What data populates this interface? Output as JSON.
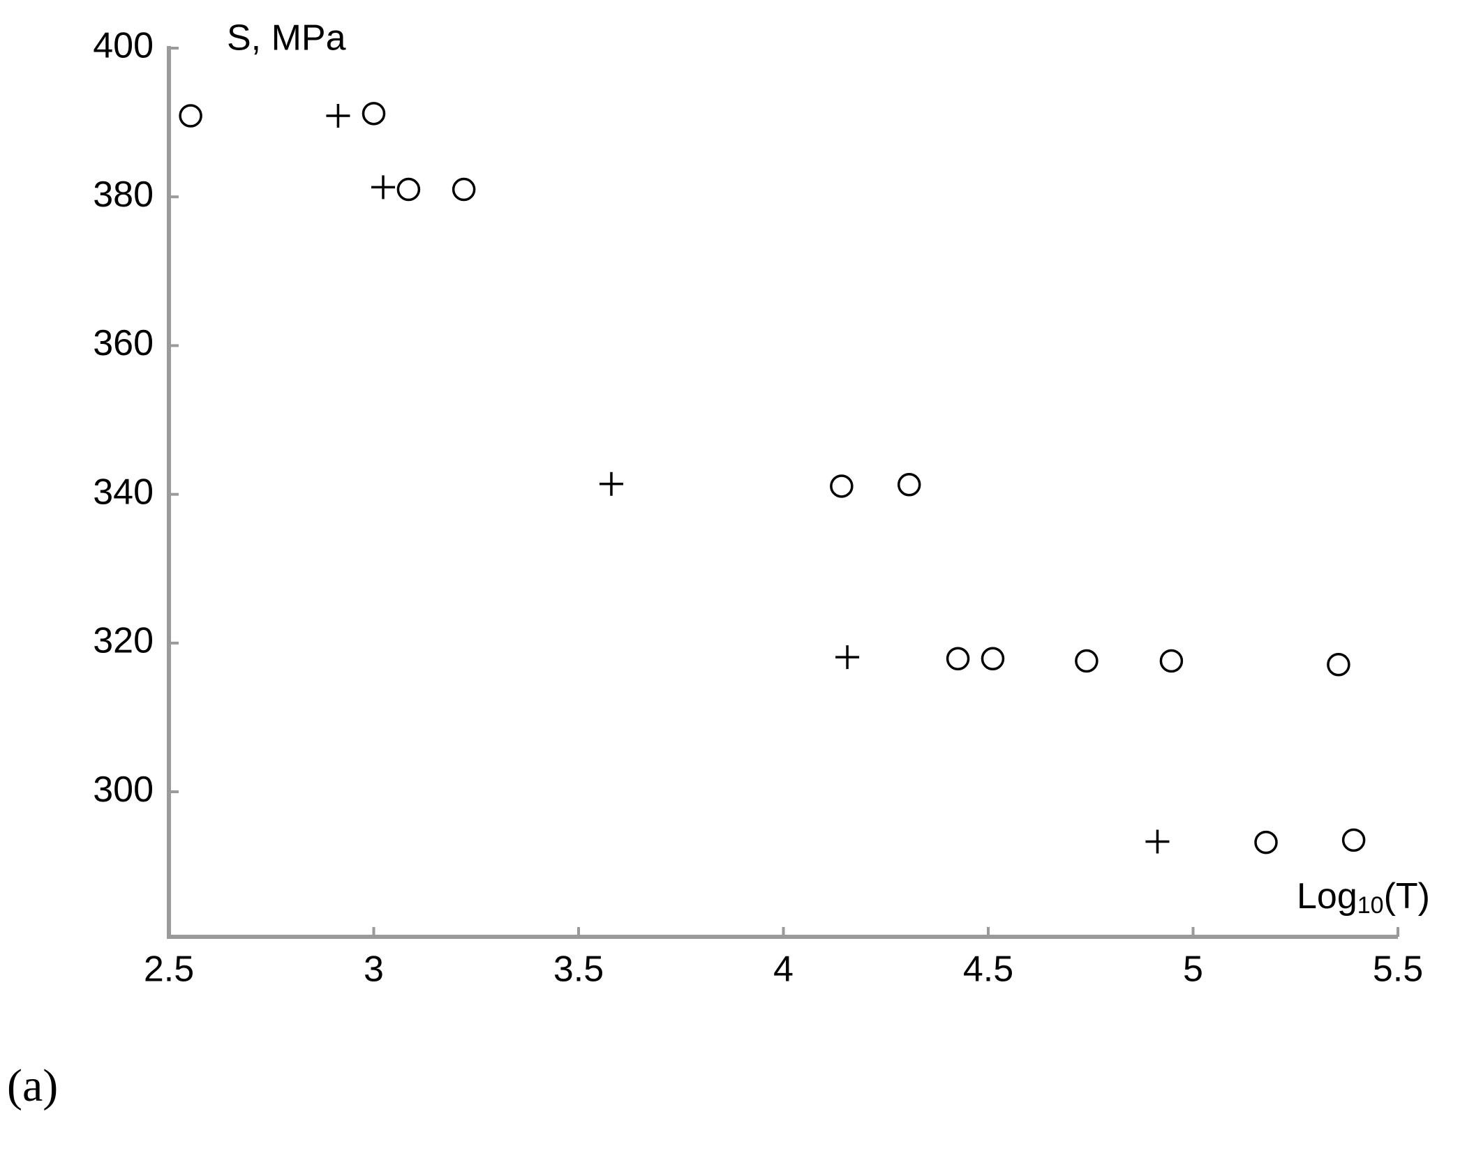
{
  "chart_data": {
    "type": "scatter",
    "y_label": "S, MPa",
    "x_label": [
      "Log",
      "10",
      "(T)"
    ],
    "xlim": [
      2.5,
      5.5
    ],
    "xticks": [
      2.5,
      3,
      3.5,
      4,
      4.5,
      5,
      5.5
    ],
    "ylim": [
      280.5,
      400
    ],
    "yticks": [
      300,
      320,
      340,
      360,
      380,
      400
    ],
    "grid": false,
    "series": [
      {
        "marker": "circle",
        "color": "#000000",
        "x": [
          2.553,
          3.0,
          3.085,
          3.22,
          4.142,
          4.307,
          4.426,
          4.511,
          4.74,
          4.947,
          5.355,
          5.178,
          5.392
        ],
        "values": [
          390.9,
          391.2,
          381.0,
          381.0,
          341.1,
          341.3,
          317.9,
          317.9,
          317.6,
          317.6,
          317.1,
          293.2,
          293.5
        ]
      },
      {
        "marker": "plus",
        "color": "#000000",
        "x": [
          2.913,
          3.023,
          3.58,
          4.156,
          4.913
        ],
        "values": [
          390.9,
          381.3,
          341.4,
          318.1,
          293.3
        ]
      }
    ]
  },
  "panel_label": "(a)"
}
